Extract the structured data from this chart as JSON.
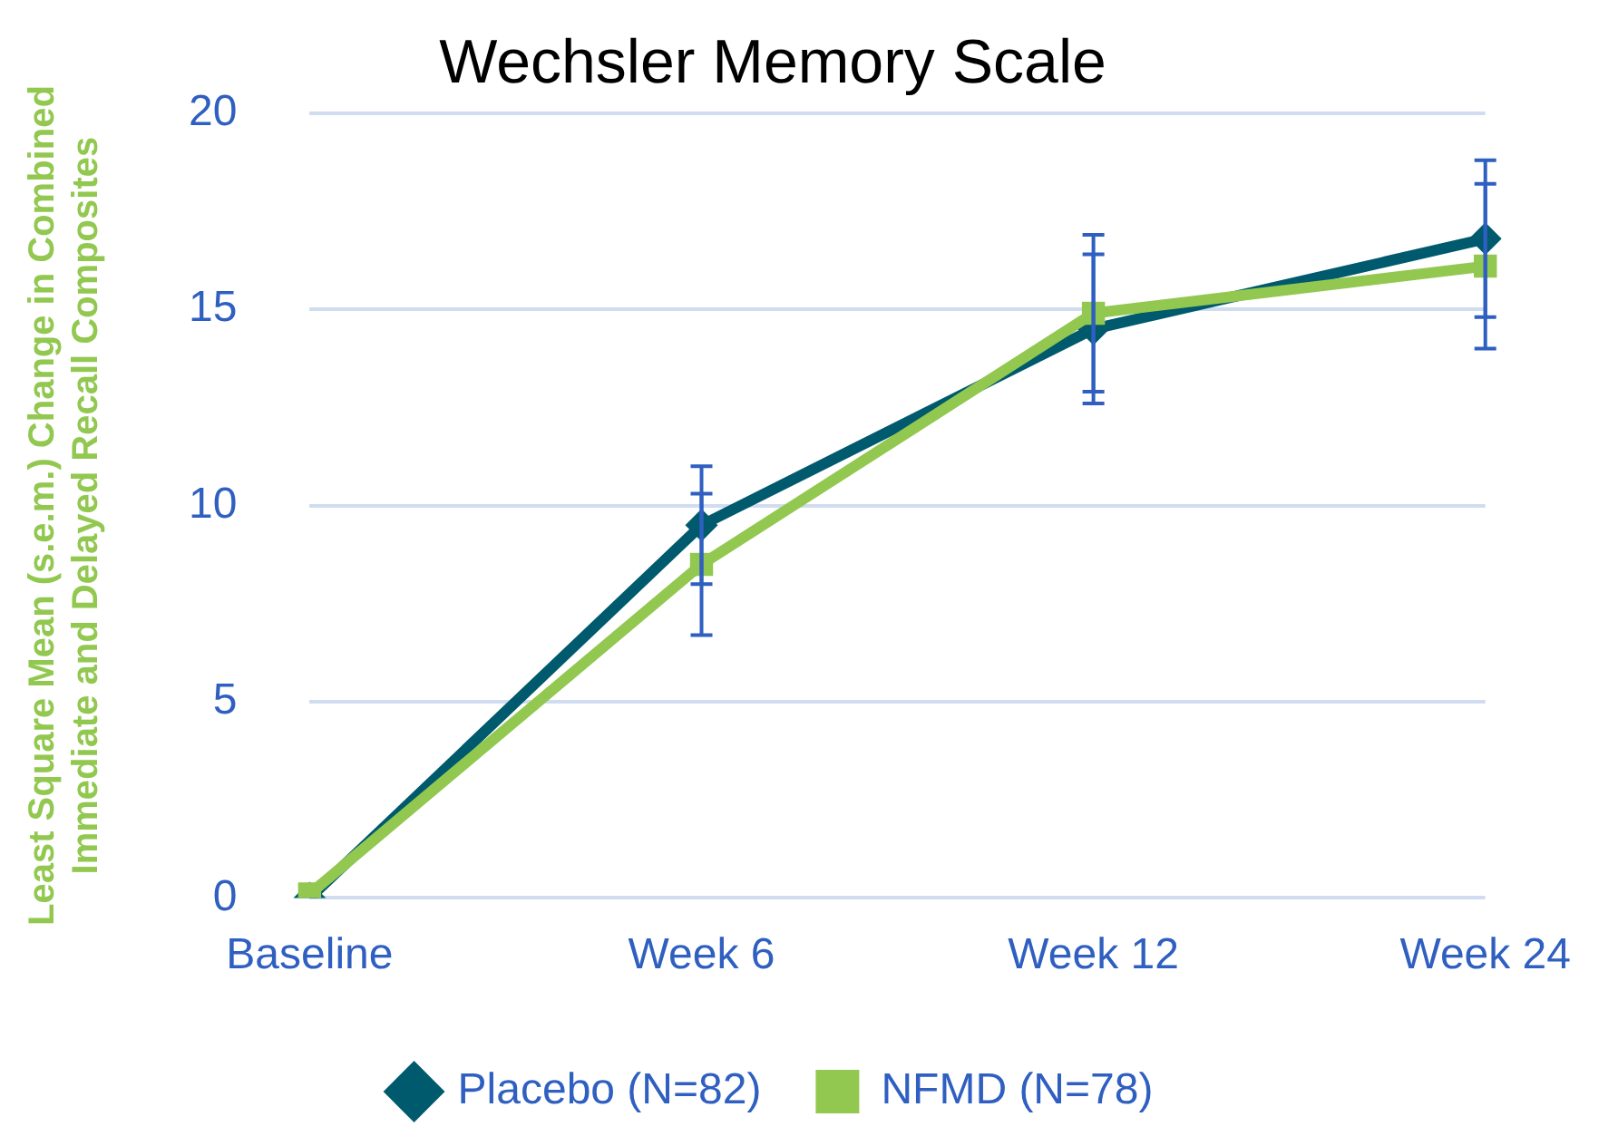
{
  "chart_data": {
    "type": "line",
    "title": "Wechsler Memory Scale",
    "ylabel": "Least Square Mean (s.e.m.) Change in Combined\nImmediate and Delayed Recall Composites",
    "categories": [
      "Baseline",
      "Week 6",
      "Week 12",
      "Week 24"
    ],
    "series": [
      {
        "name": "Placebo (N=82)",
        "color": "#005a6e",
        "marker": "diamond",
        "values": [
          0,
          9.5,
          14.5,
          16.8
        ],
        "errors": [
          null,
          1.5,
          1.9,
          2.0
        ]
      },
      {
        "name": "NFMD (N=78)",
        "color": "#92c850",
        "marker": "square",
        "values": [
          0.1,
          8.5,
          14.9,
          16.1
        ],
        "errors": [
          null,
          1.8,
          2.0,
          2.1
        ]
      }
    ],
    "ylim": [
      0,
      20
    ],
    "yticks": [
      0,
      5,
      10,
      15,
      20
    ],
    "grid": "y",
    "legend": "bottom"
  }
}
